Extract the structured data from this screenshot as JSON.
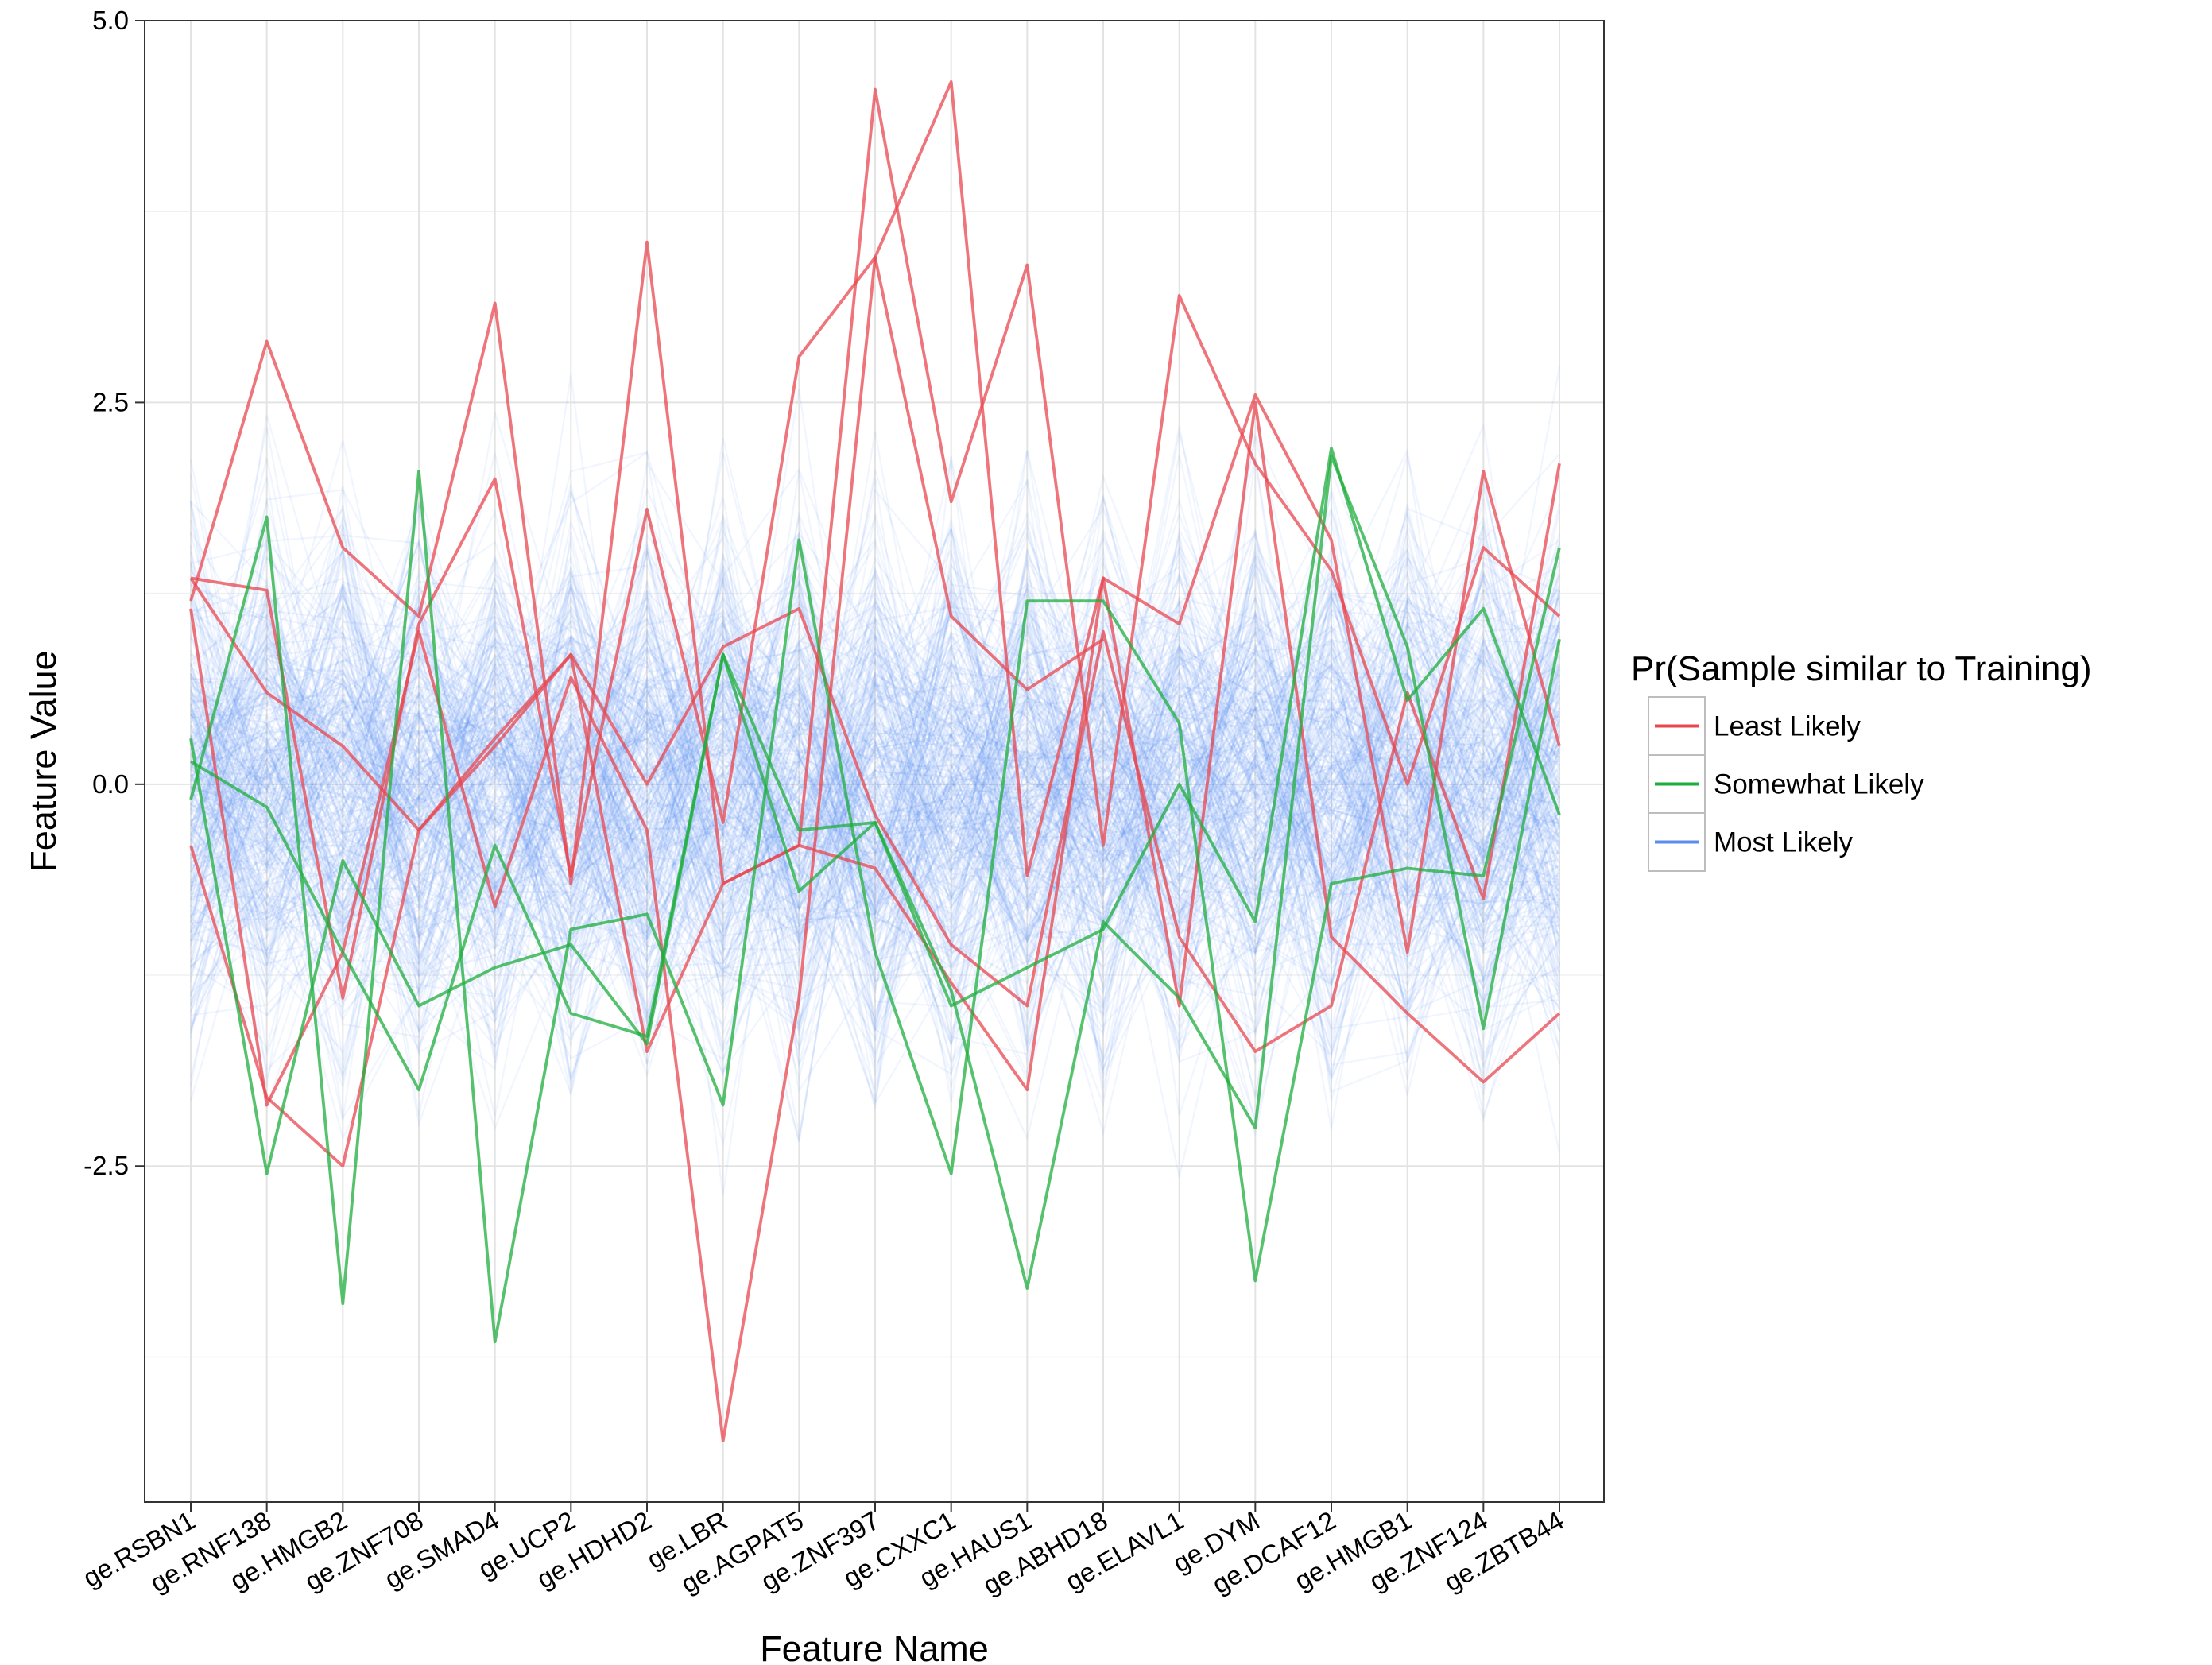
{
  "chart_data": {
    "type": "line",
    "subtype": "parallel-coordinates",
    "title": "",
    "xlabel": "Feature Name",
    "ylabel": "Feature Value",
    "ylim": [
      -4.7,
      5.0
    ],
    "y_ticks": [
      "-2.5",
      "0.0",
      "2.5",
      "5.0"
    ],
    "y_tick_values": [
      -2.5,
      0.0,
      2.5,
      5.0
    ],
    "grid": true,
    "legend_position": "right",
    "categories": [
      "ge.RSBN1",
      "ge.RNF138",
      "ge.HMGB2",
      "ge.ZNF708",
      "ge.SMAD4",
      "ge.UCP2",
      "ge.HDHD2",
      "ge.LBR",
      "ge.AGPAT5",
      "ge.ZNF397",
      "ge.CXXC1",
      "ge.HAUS1",
      "ge.ABHD18",
      "ge.ELAVL1",
      "ge.DYM",
      "ge.DCAF12",
      "ge.HMGB1",
      "ge.ZNF124",
      "ge.ZBTB44"
    ],
    "legend": {
      "title": "Pr(Sample similar to Training)",
      "entries": [
        {
          "label": "Least Likely",
          "color": "#e8474f"
        },
        {
          "label": "Somewhat Likely",
          "color": "#1fae3e"
        },
        {
          "label": "Most Likely",
          "color": "#5b8def"
        }
      ]
    },
    "series": [
      {
        "group": "Least Likely",
        "values": [
          1.35,
          1.27,
          -1.4,
          1.05,
          2.0,
          -0.6,
          1.8,
          -0.25,
          2.8,
          3.45,
          1.1,
          0.62,
          0.95,
          null,
          null,
          null,
          null,
          null,
          null
        ]
      },
      {
        "group": "Least Likely",
        "values": [
          1.2,
          2.9,
          1.55,
          1.1,
          3.15,
          -0.65,
          3.55,
          -0.65,
          -0.4,
          4.55,
          1.85,
          3.4,
          -0.4,
          3.2,
          2.1,
          1.4,
          0.0,
          1.55,
          1.1
        ]
      },
      {
        "group": "Least Likely",
        "values": [
          1.15,
          -2.1,
          -1.1,
          1.0,
          -0.8,
          0.7,
          -0.3,
          -4.3,
          -1.4,
          3.45,
          4.6,
          -0.6,
          1.35,
          1.05,
          2.55,
          1.6,
          -1.1,
          2.05,
          0.25
        ]
      },
      {
        "group": "Least Likely",
        "values": [
          -0.4,
          -2.05,
          -2.5,
          -0.3,
          0.3,
          0.85,
          0.0,
          0.9,
          1.15,
          -0.2,
          -1.05,
          -1.45,
          1.0,
          -1.0,
          -1.75,
          -1.45,
          0.6,
          -0.75,
          2.1
        ]
      },
      {
        "group": "Least Likely",
        "values": [
          1.35,
          0.6,
          0.25,
          -0.3,
          0.25,
          0.85,
          -1.75,
          -0.65,
          -0.4,
          -0.55,
          -1.3,
          -2.0,
          1.35,
          -1.45,
          2.5,
          -1.0,
          -1.5,
          -1.95,
          -1.5
        ]
      },
      {
        "group": "Somewhat Likely",
        "values": [
          0.15,
          -0.15,
          -1.1,
          -2.0,
          -0.4,
          -1.5,
          -1.65,
          0.85,
          -0.3,
          -0.25,
          -1.45,
          -1.2,
          -0.95,
          0.0,
          -0.9,
          2.2,
          0.55,
          1.15,
          -0.2
        ]
      },
      {
        "group": "Somewhat Likely",
        "values": [
          -0.1,
          1.75,
          -3.4,
          2.05,
          -3.65,
          -0.95,
          -0.85,
          -2.1,
          1.6,
          -1.1,
          -2.55,
          1.2,
          1.2,
          0.4,
          -3.25,
          -0.65,
          -0.55,
          -0.6,
          1.55
        ]
      },
      {
        "group": "Somewhat Likely",
        "values": [
          0.3,
          -2.55,
          -0.5,
          -1.45,
          -1.2,
          -1.05,
          -1.7,
          0.85,
          -0.7,
          -0.25,
          -1.35,
          -3.3,
          -0.9,
          -1.4,
          -2.25,
          2.15,
          0.9,
          -1.6,
          0.95
        ]
      }
    ],
    "background_series": "~1000 semi-transparent Most Likely samples spread roughly within -2.5 to 2.5"
  }
}
